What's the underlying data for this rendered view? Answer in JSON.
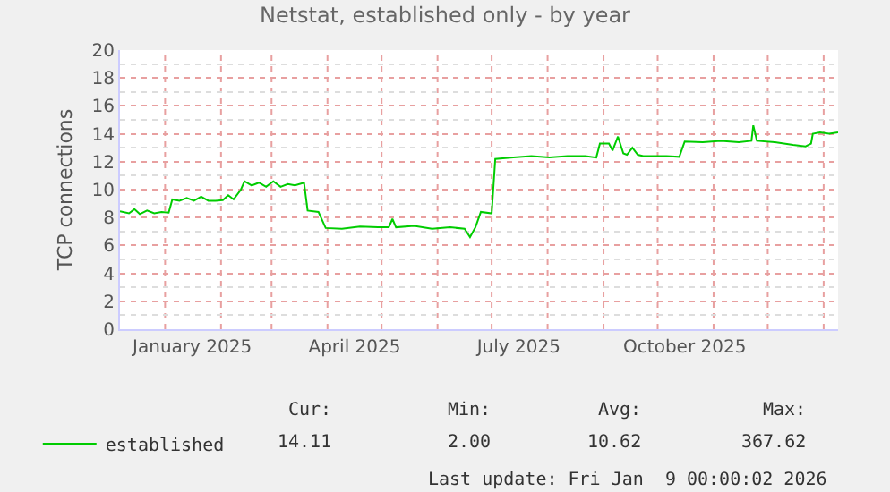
{
  "chart_data": {
    "type": "line",
    "title": "Netstat, established only - by year",
    "ylabel": "TCP connections",
    "x": [
      "2024-12-07",
      "2024-12-12",
      "2024-12-15",
      "2024-12-18",
      "2024-12-22",
      "2024-12-26",
      "2024-12-30",
      "2025-01-03",
      "2025-01-05",
      "2025-01-09",
      "2025-01-13",
      "2025-01-17",
      "2025-01-21",
      "2025-01-25",
      "2025-01-29",
      "2025-02-02",
      "2025-02-05",
      "2025-02-08",
      "2025-02-12",
      "2025-02-14",
      "2025-02-18",
      "2025-02-22",
      "2025-02-26",
      "2025-03-02",
      "2025-03-06",
      "2025-03-10",
      "2025-03-14",
      "2025-03-19",
      "2025-03-21",
      "2025-03-27",
      "2025-03-31",
      "2025-04-09",
      "2025-04-19",
      "2025-04-29",
      "2025-05-05",
      "2025-05-07",
      "2025-05-09",
      "2025-05-19",
      "2025-05-29",
      "2025-06-08",
      "2025-06-16",
      "2025-06-19",
      "2025-06-22",
      "2025-06-25",
      "2025-07-01",
      "2025-07-03",
      "2025-07-13",
      "2025-07-23",
      "2025-08-02",
      "2025-08-12",
      "2025-08-22",
      "2025-08-28",
      "2025-08-30",
      "2025-09-04",
      "2025-09-06",
      "2025-09-09",
      "2025-09-12",
      "2025-09-14",
      "2025-09-17",
      "2025-09-20",
      "2025-09-23",
      "2025-09-28",
      "2025-10-06",
      "2025-10-13",
      "2025-10-16",
      "2025-10-26",
      "2025-11-05",
      "2025-11-15",
      "2025-11-22",
      "2025-11-23",
      "2025-11-25",
      "2025-12-05",
      "2025-12-15",
      "2025-12-22",
      "2025-12-25",
      "2025-12-26",
      "2025-12-30",
      "2026-01-04",
      "2026-01-09"
    ],
    "series": [
      {
        "name": "established",
        "color": "#00cc00",
        "values": [
          8.45,
          8.3,
          8.6,
          8.25,
          8.5,
          8.3,
          8.4,
          8.35,
          9.3,
          9.2,
          9.4,
          9.2,
          9.5,
          9.2,
          9.2,
          9.25,
          9.6,
          9.3,
          10.0,
          10.6,
          10.3,
          10.5,
          10.2,
          10.6,
          10.2,
          10.4,
          10.3,
          10.5,
          8.5,
          8.4,
          7.25,
          7.2,
          7.35,
          7.3,
          7.3,
          7.9,
          7.3,
          7.4,
          7.2,
          7.3,
          7.2,
          6.6,
          7.3,
          8.4,
          8.3,
          12.2,
          12.3,
          12.4,
          12.3,
          12.4,
          12.4,
          12.3,
          13.3,
          13.3,
          12.8,
          13.8,
          12.6,
          12.5,
          13.0,
          12.5,
          12.4,
          12.4,
          12.4,
          12.35,
          13.45,
          13.4,
          13.5,
          13.4,
          13.5,
          14.6,
          13.5,
          13.4,
          13.2,
          13.1,
          13.3,
          14.0,
          14.1,
          14.0,
          14.11
        ]
      }
    ],
    "xlim": [
      "2024-12-07",
      "2026-01-09"
    ],
    "xticks": [
      {
        "value": "2025-01-01",
        "label": null
      },
      {
        "value": "2025-01-16",
        "label": "January 2025"
      },
      {
        "value": "2025-02-01",
        "label": null
      },
      {
        "value": "2025-03-01",
        "label": null
      },
      {
        "value": "2025-04-01",
        "label": null
      },
      {
        "value": "2025-04-16",
        "label": "April 2025"
      },
      {
        "value": "2025-05-01",
        "label": null
      },
      {
        "value": "2025-06-01",
        "label": null
      },
      {
        "value": "2025-07-01",
        "label": null
      },
      {
        "value": "2025-07-16",
        "label": "July 2025"
      },
      {
        "value": "2025-08-01",
        "label": null
      },
      {
        "value": "2025-09-01",
        "label": null
      },
      {
        "value": "2025-10-01",
        "label": null
      },
      {
        "value": "2025-10-16",
        "label": "October 2025"
      },
      {
        "value": "2025-11-01",
        "label": null
      },
      {
        "value": "2025-12-01",
        "label": null
      },
      {
        "value": "2026-01-01",
        "label": null
      }
    ],
    "ylim": [
      0,
      20
    ],
    "yticks": [
      0,
      2,
      4,
      6,
      8,
      10,
      12,
      14,
      16,
      18,
      20
    ],
    "grid": true,
    "legend": "bottom left",
    "marker": "none",
    "line_style": "solid",
    "annotations": [
      "Cur:",
      "Min:",
      "Avg:",
      "Max:",
      "14.11",
      "2.00",
      "10.62",
      "367.62",
      "Last update: Fri Jan  9 00:00:02 2026"
    ]
  }
}
